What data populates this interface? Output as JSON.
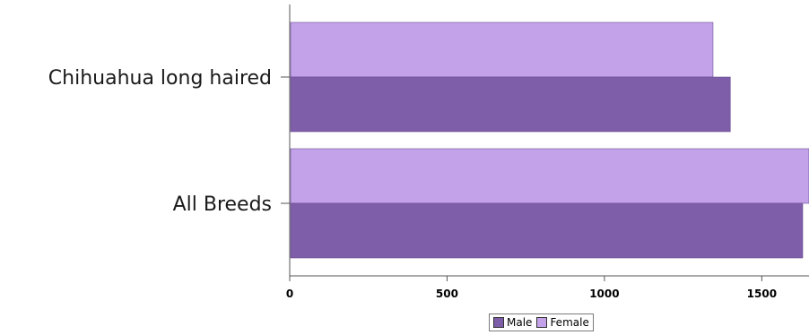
{
  "chart_data": {
    "type": "bar",
    "orientation": "horizontal",
    "categories": [
      "Chihuahua long haired",
      "All Breeds"
    ],
    "series": [
      {
        "name": "Male",
        "color": "#7e5ea8",
        "values": [
          1400,
          1630
        ]
      },
      {
        "name": "Female",
        "color": "#c3a2ea",
        "values": [
          1345,
          1650
        ]
      }
    ],
    "xlim": [
      0,
      1650
    ],
    "xticks": [
      0,
      500,
      1000,
      1500
    ],
    "legend_position": "bottom-center",
    "grid": false
  }
}
